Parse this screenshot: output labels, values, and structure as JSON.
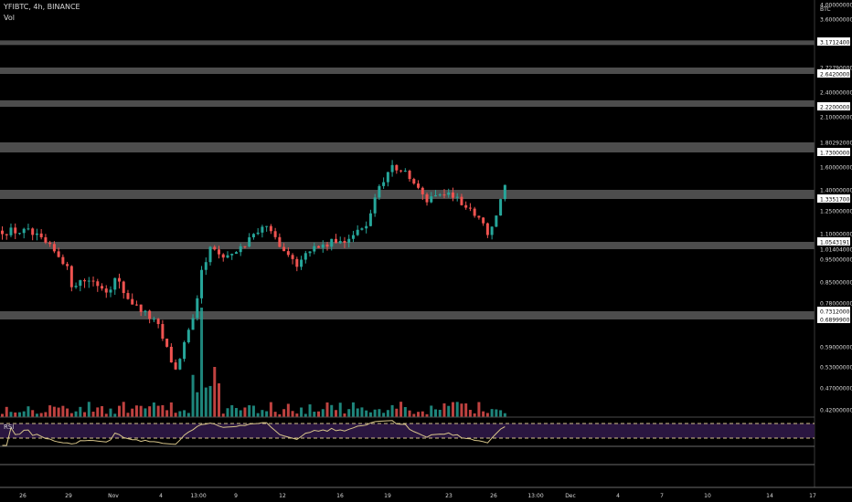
{
  "header": {
    "symbol_line": "YFIBTC, 4h, BINANCE",
    "volume_label": "Vol"
  },
  "rsi_label": "RSI",
  "colors": {
    "background": "#000000",
    "up": "#26a69a",
    "down": "#ef5350",
    "zone": "#5a5a5a",
    "rsi_line": "#d7c58a",
    "rsi_band": "#2a1640",
    "rsi_dash": "#d4c28a",
    "axis_text": "#d9d9d9"
  },
  "chart_data": {
    "type": "candlestick",
    "interval": "4h",
    "exchange": "BINANCE",
    "quote_currency": "BTC",
    "y_axis_ticks": [
      "4.00000000",
      "3.60000000",
      "3.17124000",
      "2.72790000",
      "2.64200000",
      "2.40000000",
      "2.22000000",
      "2.10000000",
      "1.80292000",
      "1.73000000",
      "1.60000000",
      "1.40000000",
      "1.33517000",
      "1.25000000",
      "1.10000000",
      "1.05431917",
      "1.01404000",
      "0.95000000",
      "0.85000000",
      "0.78000000",
      "0.73120000",
      "0.68999000",
      "0.59000000",
      "0.53000000",
      "0.47000000",
      "0.42000000"
    ],
    "y_tick_values": [
      4.0,
      3.6,
      3.17124,
      2.7279,
      2.642,
      2.4,
      2.22,
      2.1,
      1.80292,
      1.73,
      1.6,
      1.4,
      1.33517,
      1.25,
      1.1,
      1.05431917,
      1.01404,
      0.95,
      0.85,
      0.78,
      0.7312,
      0.68999,
      0.59,
      0.53,
      0.47,
      0.42
    ],
    "highlighted_ticks": [
      "3.17124000",
      "2.64200000",
      "2.22000000",
      "1.73000000",
      "1.33517000",
      "1.05431917",
      "0.73120000",
      "0.68999000"
    ],
    "x_axis_ticks": [
      "26",
      "29",
      "Nov",
      "4",
      "13:00",
      "9",
      "12",
      "16",
      "19",
      "23",
      "26",
      "13:00",
      "Dec",
      "4",
      "7",
      "10",
      "14",
      "17"
    ],
    "horizontal_zones": [
      {
        "name": "zone-1",
        "top": 3.2,
        "bottom": 3.17124
      },
      {
        "name": "zone-2",
        "top": 2.7279,
        "bottom": 2.642
      },
      {
        "name": "zone-3",
        "top": 2.3,
        "bottom": 2.22
      },
      {
        "name": "zone-4",
        "top": 1.80292,
        "bottom": 1.73
      },
      {
        "name": "zone-5",
        "top": 1.4,
        "bottom": 1.33517
      },
      {
        "name": "zone-6",
        "top": 1.05431917,
        "bottom": 1.01404
      },
      {
        "name": "zone-7",
        "top": 0.7312,
        "bottom": 0.68999
      }
    ],
    "last_price": 1.4,
    "price_path": [
      [
        0,
        1.12
      ],
      [
        6,
        1.11
      ],
      [
        10,
        1.04
      ],
      [
        14,
        0.95
      ],
      [
        16,
        0.85
      ],
      [
        20,
        0.86
      ],
      [
        24,
        0.83
      ],
      [
        26,
        0.86
      ],
      [
        30,
        0.78
      ],
      [
        33,
        0.72
      ],
      [
        36,
        0.66
      ],
      [
        38,
        0.58
      ],
      [
        40,
        0.52
      ],
      [
        42,
        0.6
      ],
      [
        44,
        0.68
      ],
      [
        46,
        0.9
      ],
      [
        48,
        1.02
      ],
      [
        50,
        0.98
      ],
      [
        52,
        0.97
      ],
      [
        54,
        0.98
      ],
      [
        58,
        1.1
      ],
      [
        60,
        1.16
      ],
      [
        62,
        1.1
      ],
      [
        64,
        1.05
      ],
      [
        66,
        0.98
      ],
      [
        68,
        0.93
      ],
      [
        70,
        1.01
      ],
      [
        74,
        1.03
      ],
      [
        78,
        1.06
      ],
      [
        80,
        1.08
      ],
      [
        84,
        1.14
      ],
      [
        86,
        1.35
      ],
      [
        88,
        1.5
      ],
      [
        90,
        1.6
      ],
      [
        92,
        1.58
      ],
      [
        94,
        1.5
      ],
      [
        96,
        1.4
      ],
      [
        98,
        1.32
      ],
      [
        100,
        1.38
      ],
      [
        104,
        1.36
      ],
      [
        106,
        1.3
      ],
      [
        108,
        1.25
      ],
      [
        110,
        1.22
      ],
      [
        112,
        1.1
      ],
      [
        114,
        1.2
      ],
      [
        116,
        1.45
      ]
    ],
    "rsi_levels": {
      "upper": 70,
      "lower": 30
    }
  }
}
